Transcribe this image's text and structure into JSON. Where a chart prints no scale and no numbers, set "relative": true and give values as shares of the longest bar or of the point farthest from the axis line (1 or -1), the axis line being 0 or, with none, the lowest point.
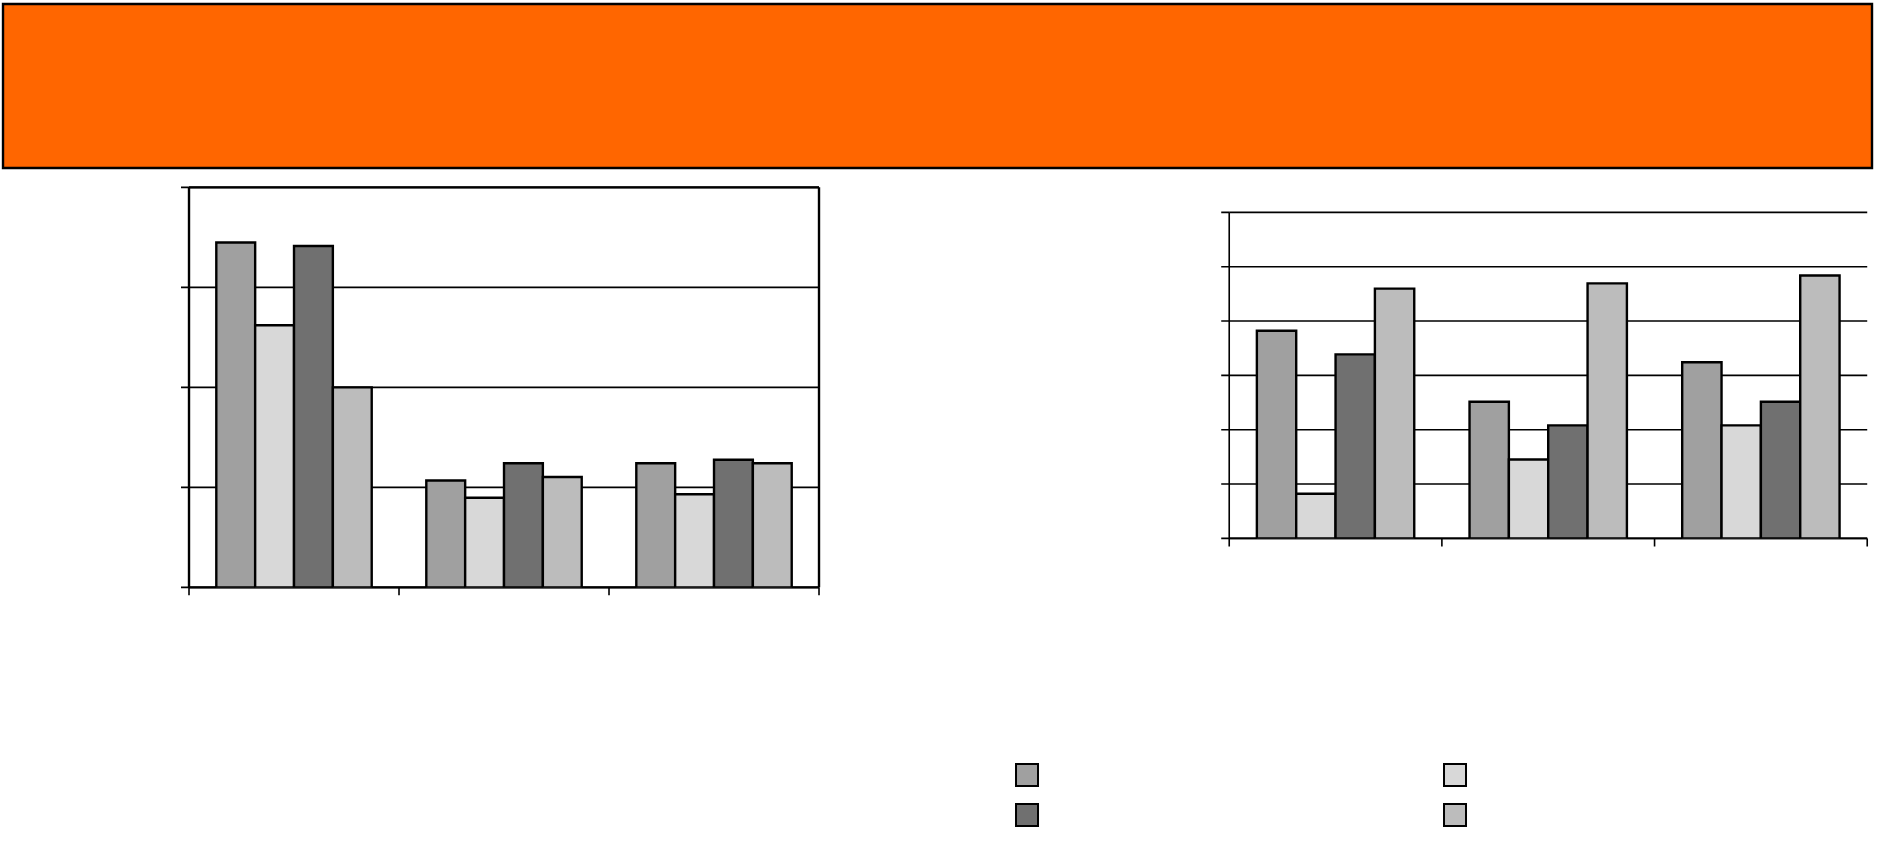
{
  "chart_data": [
    {
      "type": "bar",
      "relative": true,
      "categories": [
        null,
        null,
        null
      ],
      "grid": "y",
      "tick_labels": false,
      "series": [
        {
          "color": "#a0a0a0",
          "values": [
            1,
            0.31,
            0.36
          ]
        },
        {
          "color": "#d8d8d8",
          "values": [
            0.76,
            0.26,
            0.27
          ]
        },
        {
          "color": "#707070",
          "values": [
            0.99,
            0.36,
            0.37
          ]
        },
        {
          "color": "#bcbcbc",
          "values": [
            0.58,
            0.32,
            0.36
          ]
        }
      ]
    },
    {
      "type": "bar",
      "relative": true,
      "categories": [
        null,
        null,
        null
      ],
      "grid": "y",
      "tick_labels": false,
      "series": [
        {
          "color": "#a0a0a0",
          "values": [
            0.79,
            0.52,
            0.67
          ]
        },
        {
          "color": "#d8d8d8",
          "values": [
            0.17,
            0.3,
            0.43
          ]
        },
        {
          "color": "#707070",
          "values": [
            0.7,
            0.43,
            0.52
          ]
        },
        {
          "color": "#bcbcbc",
          "values": [
            0.95,
            0.97,
            1
          ]
        }
      ]
    }
  ]
}
